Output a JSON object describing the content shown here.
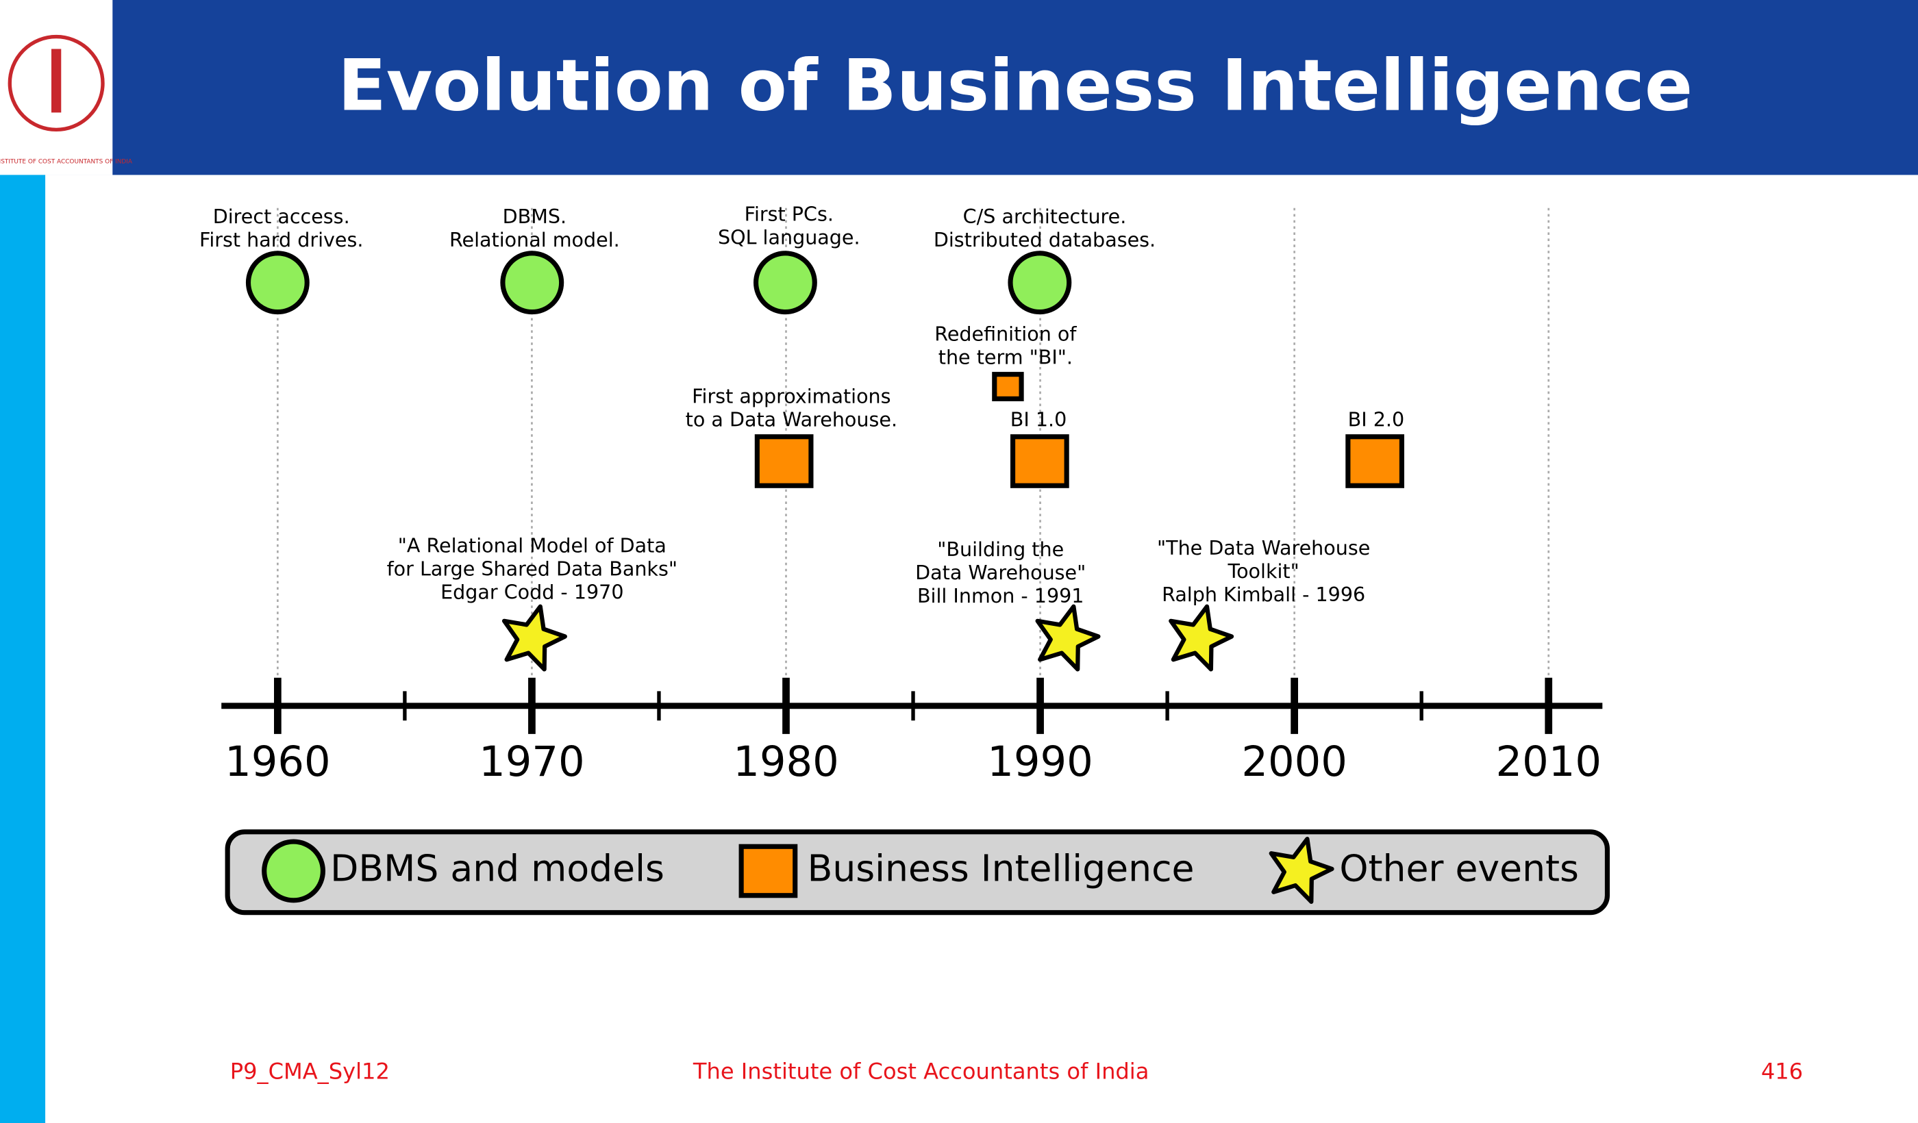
{
  "header": {
    "title": "Evolution of Business Intelligence",
    "logo_text": "THE INSTITUTE OF COST ACCOUNTANTS OF INDIA"
  },
  "timeline": {
    "axis_labels": [
      "1960",
      "1970",
      "1980",
      "1990",
      "2000",
      "2010"
    ],
    "events": [
      {
        "kind": "dbms",
        "lines": [
          "Direct access.",
          "First hard drives."
        ]
      },
      {
        "kind": "dbms",
        "lines": [
          "DBMS.",
          "Relational model."
        ]
      },
      {
        "kind": "dbms",
        "lines": [
          "First PCs.",
          "SQL language."
        ]
      },
      {
        "kind": "dbms",
        "lines": [
          "C/S architecture.",
          "Distributed databases."
        ]
      },
      {
        "kind": "bi",
        "lines": [
          "Redefinition of",
          "the term \"BI\"."
        ]
      },
      {
        "kind": "bi",
        "lines": [
          "First approximations",
          "to a Data Warehouse."
        ]
      },
      {
        "kind": "bi",
        "lines": [
          "BI 1.0"
        ]
      },
      {
        "kind": "bi",
        "lines": [
          "BI 2.0"
        ]
      },
      {
        "kind": "other",
        "lines": [
          "\"A Relational Model of Data",
          "for Large Shared Data Banks\"",
          "Edgar Codd - 1970"
        ]
      },
      {
        "kind": "other",
        "lines": [
          "\"Building the",
          "Data Warehouse\"",
          "Bill Inmon - 1991"
        ]
      },
      {
        "kind": "other",
        "lines": [
          "\"The Data Warehouse",
          "Toolkit\"",
          "Ralph Kimball - 1996"
        ]
      }
    ],
    "legend": [
      "DBMS and models",
      "Business Intelligence",
      "Other events"
    ]
  },
  "footer": {
    "left": "P9_CMA_Syl12",
    "center": "The Institute of Cost Accountants of India",
    "right": "416"
  }
}
